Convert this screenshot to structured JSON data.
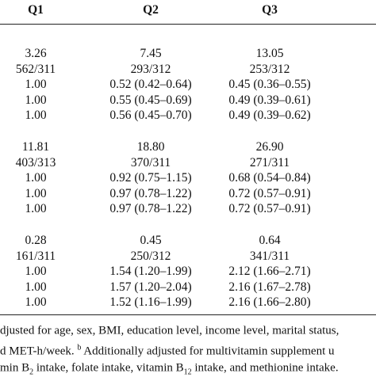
{
  "table": {
    "header": [
      "Q1",
      "Q2",
      "Q3"
    ],
    "groups": [
      [
        [
          "3.26",
          "7.45",
          "13.05"
        ],
        [
          "562/311",
          "293/312",
          "253/312"
        ],
        [
          "1.00",
          "0.52 (0.42–0.64)",
          "0.45 (0.36–0.55)"
        ],
        [
          "1.00",
          "0.55 (0.45–0.69)",
          "0.49 (0.39–0.61)"
        ],
        [
          "1.00",
          "0.56 (0.45–0.70)",
          "0.49 (0.39–0.62)"
        ]
      ],
      [
        [
          "11.81",
          "18.80",
          "26.90"
        ],
        [
          "403/313",
          "370/311",
          "271/311"
        ],
        [
          "1.00",
          "0.92 (0.75–1.15)",
          "0.68 (0.54–0.84)"
        ],
        [
          "1.00",
          "0.97 (0.78–1.22)",
          "0.72 (0.57–0.91)"
        ],
        [
          "1.00",
          "0.97 (0.78–1.22)",
          "0.72 (0.57–0.91)"
        ]
      ],
      [
        [
          "0.28",
          "0.45",
          "0.64"
        ],
        [
          "161/311",
          "250/312",
          "341/311"
        ],
        [
          "1.00",
          "1.54 (1.20–1.99)",
          "2.12 (1.66–2.71)"
        ],
        [
          "1.00",
          "1.57 (1.20–2.04)",
          "2.16 (1.67–2.78)"
        ],
        [
          "1.00",
          "1.52 (1.16–1.99)",
          "2.16 (1.66–2.80)"
        ]
      ]
    ]
  },
  "footnote": [
    [
      {
        "text": "djusted for age, sex, BMI, education level, income level, marital status,"
      }
    ],
    [
      {
        "text": "d MET-h/week. "
      },
      {
        "sup": "b"
      },
      {
        "text": " Additionally adjusted for multivitamin supplement u"
      }
    ],
    [
      {
        "text": "min B"
      },
      {
        "sub": "2"
      },
      {
        "text": " intake, folate intake, vitamin B"
      },
      {
        "sub": "12"
      },
      {
        "text": " intake, and methionine intake."
      }
    ]
  ]
}
